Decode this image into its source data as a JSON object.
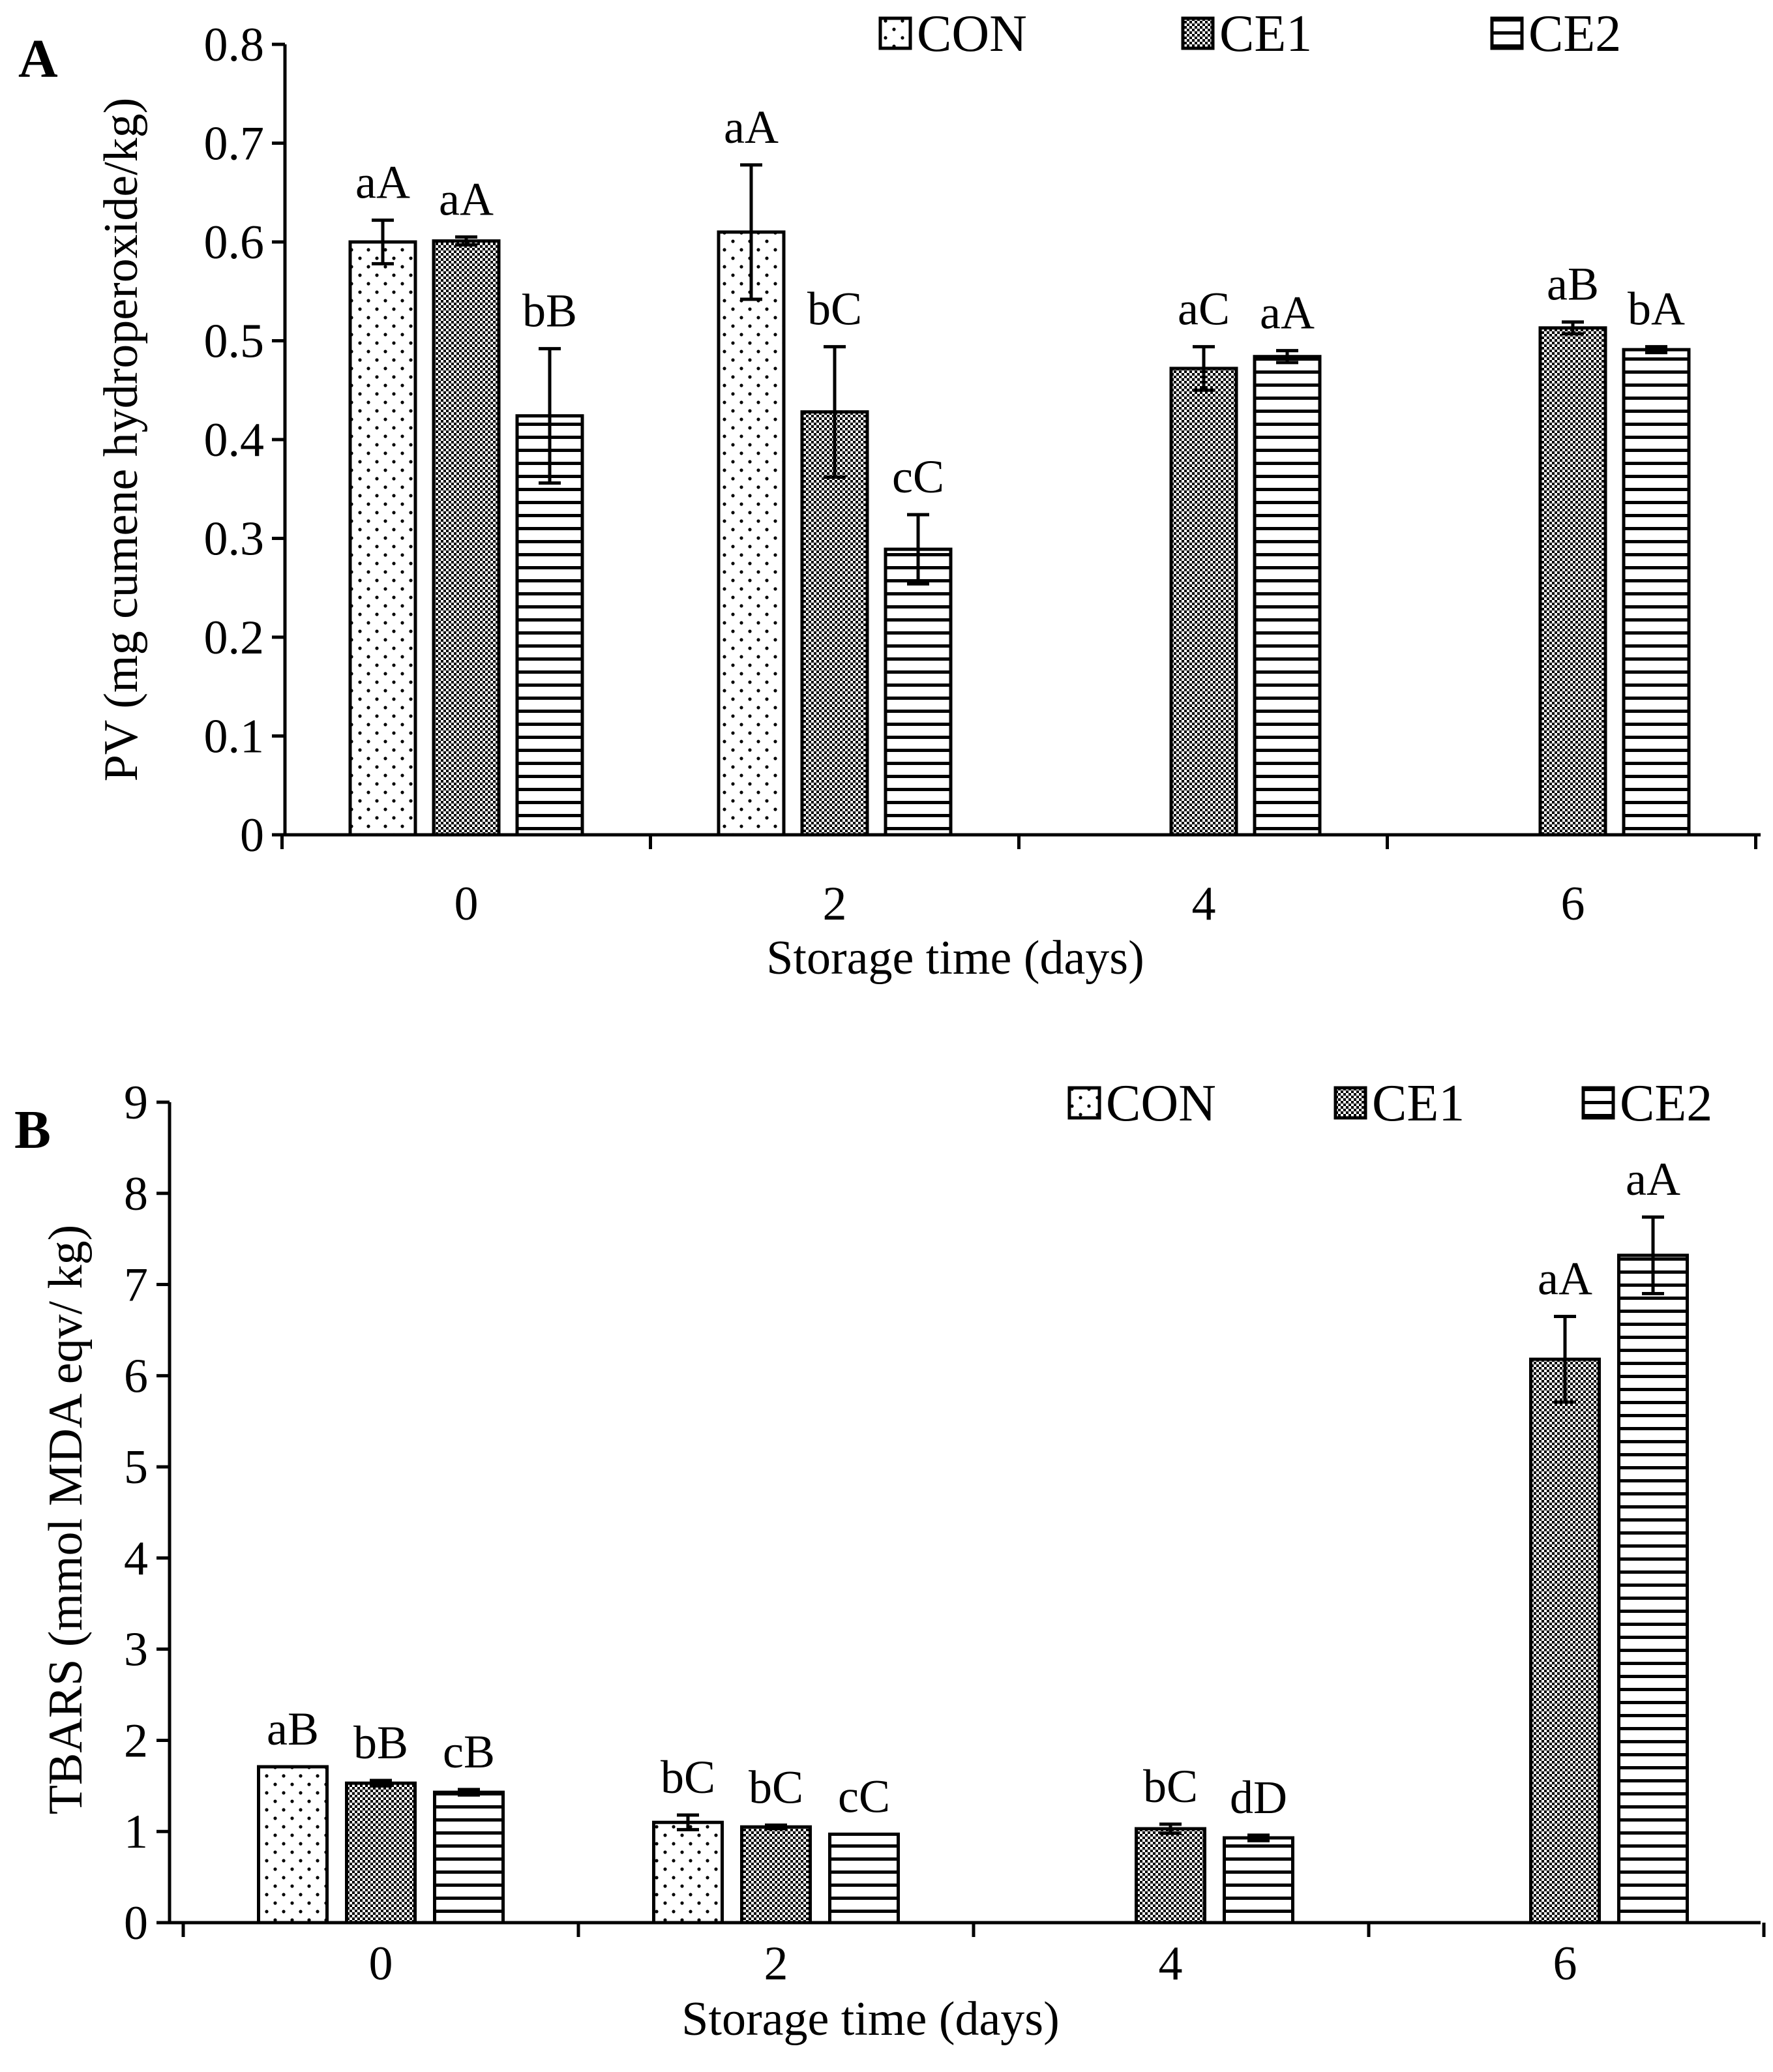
{
  "chart_data": [
    {
      "type": "bar",
      "panel_label": "A",
      "categories": [
        "0",
        "2",
        "4",
        "6"
      ],
      "xlabel": "Storage time (days)",
      "ylabel": "PV (mg cumene hydroperoxide/kg)",
      "ylim": [
        0,
        0.8
      ],
      "yticks": [
        "0",
        "0.1",
        "0.2",
        "0.3",
        "0.4",
        "0.5",
        "0.6",
        "0.7",
        "0.8"
      ],
      "grid": false,
      "legend_position": "top-right",
      "series": [
        {
          "name": "CON",
          "pattern": "dots",
          "values": [
            0.6,
            0.61,
            null,
            null
          ],
          "errors": [
            0.022,
            0.068,
            null,
            null
          ],
          "labels": [
            "aA",
            "aA",
            "",
            ""
          ]
        },
        {
          "name": "CE1",
          "pattern": "checker",
          "values": [
            0.601,
            0.428,
            0.472,
            0.513
          ],
          "errors": [
            0.004,
            0.066,
            0.022,
            0.006
          ],
          "labels": [
            "aA",
            "bC",
            "aC",
            "aB"
          ]
        },
        {
          "name": "CE2",
          "pattern": "hlines",
          "values": [
            0.424,
            0.289,
            0.484,
            0.491
          ],
          "errors": [
            0.068,
            0.035,
            0.006,
            0.003
          ],
          "labels": [
            "bB",
            "cC",
            "aA",
            "bA"
          ]
        }
      ]
    },
    {
      "type": "bar",
      "panel_label": "B",
      "categories": [
        "0",
        "2",
        "4",
        "6"
      ],
      "xlabel": "Storage time (days)",
      "ylabel": "TBARS (mmol MDA eqv/ kg)",
      "ylim": [
        0,
        9
      ],
      "yticks": [
        "0",
        "1",
        "2",
        "3",
        "4",
        "5",
        "6",
        "7",
        "8",
        "9"
      ],
      "grid": false,
      "legend_position": "top-right",
      "series": [
        {
          "name": "CON",
          "pattern": "dots",
          "values": [
            1.71,
            1.1,
            null,
            null
          ],
          "errors": [
            0.0,
            0.08,
            null,
            null
          ],
          "labels": [
            "aB",
            "bC",
            "",
            ""
          ]
        },
        {
          "name": "CE1",
          "pattern": "checker",
          "values": [
            1.53,
            1.05,
            1.03,
            6.18
          ],
          "errors": [
            0.03,
            0.02,
            0.05,
            0.47
          ],
          "labels": [
            "bB",
            "bC",
            "bC",
            "aA"
          ]
        },
        {
          "name": "CE2",
          "pattern": "hlines",
          "values": [
            1.43,
            0.97,
            0.93,
            7.32
          ],
          "errors": [
            0.03,
            0.0,
            0.03,
            0.42
          ],
          "labels": [
            "cB",
            "cC",
            "dD",
            "aA"
          ]
        }
      ]
    }
  ]
}
